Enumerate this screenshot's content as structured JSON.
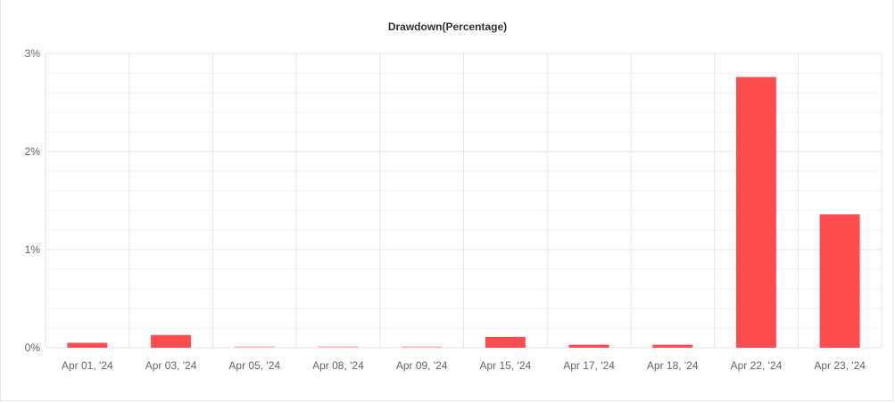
{
  "chart_data": {
    "type": "bar",
    "title": "Drawdown(Percentage)",
    "xlabel": "",
    "ylabel": "",
    "categories": [
      "Apr 01, '24",
      "Apr 03, '24",
      "Apr 05, '24",
      "Apr 08, '24",
      "Apr 09, '24",
      "Apr 15, '24",
      "Apr 17, '24",
      "Apr 18, '24",
      "Apr 22, '24",
      "Apr 23, '24"
    ],
    "values": [
      0.05,
      0.13,
      0.01,
      0.01,
      0.01,
      0.11,
      0.03,
      0.03,
      2.76,
      1.36
    ],
    "ylim": [
      0,
      3
    ],
    "yticks": [
      0,
      1,
      2,
      3
    ],
    "ytick_labels": [
      "0%",
      "1%",
      "2%",
      "3%"
    ],
    "grid": true,
    "legend": "none",
    "colors": {
      "bar": "#ff4d4f",
      "bar_faint": "#ffb3b4",
      "grid_major": "#e6e6e6",
      "grid_minor": "#f3f3f3",
      "title": "#333333",
      "tick": "#666666"
    }
  }
}
